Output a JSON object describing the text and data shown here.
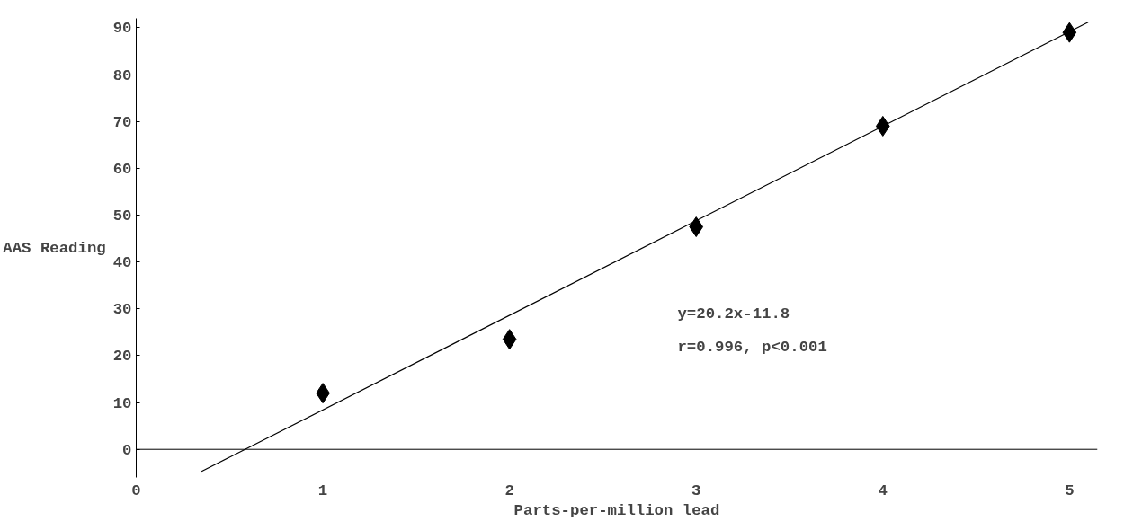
{
  "chart_data": {
    "type": "scatter",
    "xlabel": "Parts-per-million lead",
    "ylabel": "AAS Reading",
    "x": [
      1,
      2,
      3,
      4,
      5
    ],
    "series": [
      {
        "type": "scatter",
        "color": "#000000",
        "marker": "diamond",
        "values": [
          12,
          23.5,
          47.5,
          69,
          89
        ]
      },
      {
        "type": "line",
        "color": "#000000",
        "line_style": "solid",
        "x": [
          0.35,
          5.1
        ],
        "values": [
          -4.7,
          91.2
        ]
      }
    ],
    "xlim": [
      0,
      5.15
    ],
    "ylim": [
      -6,
      92
    ],
    "xticks": [
      0,
      1,
      2,
      3,
      4,
      5
    ],
    "yticks": [
      0,
      10,
      20,
      30,
      40,
      50,
      60,
      70,
      80,
      90
    ],
    "annotations": [
      "y=20.2x-11.8",
      "r=0.996, p<0.001"
    ],
    "grid": false
  }
}
